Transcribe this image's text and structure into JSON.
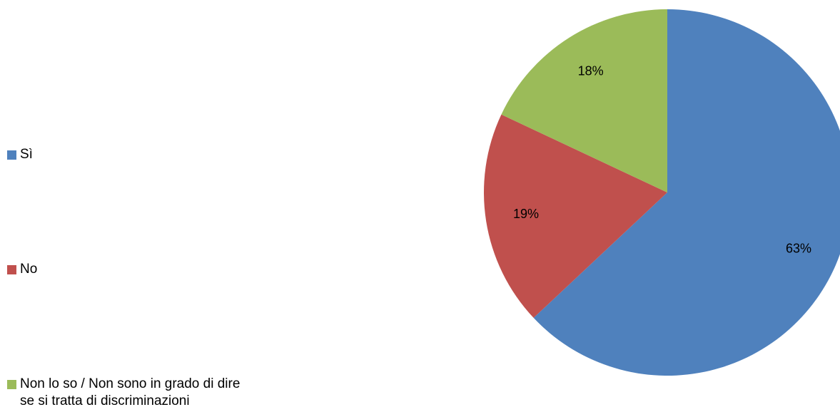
{
  "chart_data": {
    "type": "pie",
    "categories": [
      "Sì",
      "No",
      "Non lo so / Non sono in grado di dire se si tratta di discriminazioni"
    ],
    "values": [
      63,
      19,
      18
    ],
    "value_labels": [
      "63%",
      "19%",
      "18%"
    ],
    "colors": [
      "#4f81bd",
      "#c0504d",
      "#9bbb59"
    ],
    "legend": "left"
  }
}
